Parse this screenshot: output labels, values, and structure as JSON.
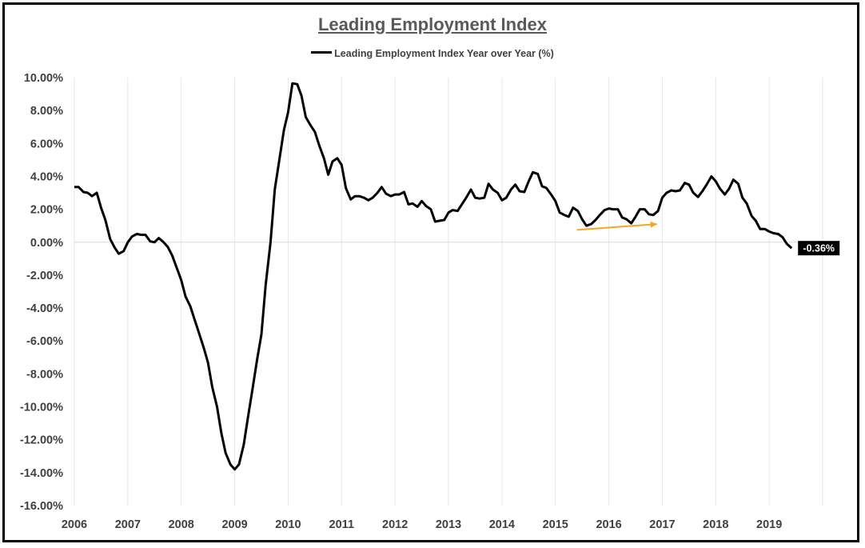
{
  "chart_data": {
    "type": "line",
    "title": "Leading Employment Index",
    "legend": "Leading Employment Index Year over Year (%)",
    "legend_position": "top-center",
    "xlabel": "",
    "ylabel": "",
    "xlim": [
      2006.0,
      2020.0
    ],
    "ylim": [
      -16,
      10
    ],
    "y_ticks": [
      10,
      8,
      6,
      4,
      2,
      0,
      -2,
      -4,
      -6,
      -8,
      -10,
      -12,
      -14,
      -16
    ],
    "y_tick_labels": [
      "10.00%",
      "8.00%",
      "6.00%",
      "4.00%",
      "2.00%",
      "0.00%",
      "-2.00%",
      "-4.00%",
      "-6.00%",
      "-8.00%",
      "-10.00%",
      "-12.00%",
      "-14.00%",
      "-16.00%"
    ],
    "x_tick_labels": [
      "2006",
      "2007",
      "2008",
      "2009",
      "2010",
      "2011",
      "2012",
      "2013",
      "2014",
      "2015",
      "2016",
      "2017",
      "2018",
      "2019"
    ],
    "grid": "vertical",
    "line_color": "#000000",
    "annotation_color": "#f5a623",
    "last_value_label": "-0.36%",
    "annotation_arrow": {
      "from": [
        2015.4,
        0.75
      ],
      "to": [
        2016.9,
        1.1
      ]
    },
    "series": [
      {
        "name": "Leading Employment Index Year over Year (%)",
        "points": [
          [
            2006.0,
            3.35
          ],
          [
            2006.08,
            3.35
          ],
          [
            2006.17,
            3.05
          ],
          [
            2006.25,
            3.0
          ],
          [
            2006.33,
            2.8
          ],
          [
            2006.42,
            3.0
          ],
          [
            2006.5,
            2.1
          ],
          [
            2006.58,
            1.35
          ],
          [
            2006.67,
            0.2
          ],
          [
            2006.75,
            -0.3
          ],
          [
            2006.83,
            -0.7
          ],
          [
            2006.92,
            -0.55
          ],
          [
            2007.0,
            0.0
          ],
          [
            2007.08,
            0.35
          ],
          [
            2007.17,
            0.5
          ],
          [
            2007.25,
            0.45
          ],
          [
            2007.33,
            0.45
          ],
          [
            2007.42,
            0.05
          ],
          [
            2007.5,
            0.0
          ],
          [
            2007.58,
            0.25
          ],
          [
            2007.67,
            0.0
          ],
          [
            2007.75,
            -0.3
          ],
          [
            2007.83,
            -0.8
          ],
          [
            2007.92,
            -1.6
          ],
          [
            2008.0,
            -2.3
          ],
          [
            2008.08,
            -3.3
          ],
          [
            2008.17,
            -3.9
          ],
          [
            2008.25,
            -4.7
          ],
          [
            2008.33,
            -5.5
          ],
          [
            2008.42,
            -6.4
          ],
          [
            2008.5,
            -7.3
          ],
          [
            2008.58,
            -8.8
          ],
          [
            2008.67,
            -10.0
          ],
          [
            2008.75,
            -11.6
          ],
          [
            2008.83,
            -12.8
          ],
          [
            2008.92,
            -13.5
          ],
          [
            2009.0,
            -13.8
          ],
          [
            2009.08,
            -13.5
          ],
          [
            2009.17,
            -12.3
          ],
          [
            2009.25,
            -10.6
          ],
          [
            2009.33,
            -9.0
          ],
          [
            2009.42,
            -7.1
          ],
          [
            2009.5,
            -5.6
          ],
          [
            2009.58,
            -2.6
          ],
          [
            2009.67,
            0.0
          ],
          [
            2009.75,
            3.2
          ],
          [
            2009.83,
            4.9
          ],
          [
            2009.92,
            6.8
          ],
          [
            2010.0,
            7.9
          ],
          [
            2010.08,
            9.65
          ],
          [
            2010.17,
            9.6
          ],
          [
            2010.25,
            8.9
          ],
          [
            2010.33,
            7.6
          ],
          [
            2010.42,
            7.1
          ],
          [
            2010.5,
            6.7
          ],
          [
            2010.58,
            5.9
          ],
          [
            2010.67,
            5.1
          ],
          [
            2010.75,
            4.1
          ],
          [
            2010.83,
            4.9
          ],
          [
            2010.92,
            5.1
          ],
          [
            2011.0,
            4.7
          ],
          [
            2011.08,
            3.3
          ],
          [
            2011.17,
            2.6
          ],
          [
            2011.25,
            2.8
          ],
          [
            2011.33,
            2.8
          ],
          [
            2011.42,
            2.7
          ],
          [
            2011.5,
            2.55
          ],
          [
            2011.58,
            2.7
          ],
          [
            2011.67,
            3.0
          ],
          [
            2011.75,
            3.35
          ],
          [
            2011.83,
            2.95
          ],
          [
            2011.92,
            2.8
          ],
          [
            2012.0,
            2.9
          ],
          [
            2012.08,
            2.9
          ],
          [
            2012.17,
            3.05
          ],
          [
            2012.25,
            2.3
          ],
          [
            2012.33,
            2.35
          ],
          [
            2012.42,
            2.15
          ],
          [
            2012.5,
            2.5
          ],
          [
            2012.58,
            2.2
          ],
          [
            2012.67,
            2.0
          ],
          [
            2012.75,
            1.25
          ],
          [
            2012.83,
            1.3
          ],
          [
            2012.92,
            1.35
          ],
          [
            2013.0,
            1.8
          ],
          [
            2013.08,
            1.95
          ],
          [
            2013.17,
            1.9
          ],
          [
            2013.25,
            2.3
          ],
          [
            2013.33,
            2.7
          ],
          [
            2013.42,
            3.2
          ],
          [
            2013.5,
            2.7
          ],
          [
            2013.58,
            2.65
          ],
          [
            2013.67,
            2.7
          ],
          [
            2013.75,
            3.55
          ],
          [
            2013.83,
            3.2
          ],
          [
            2013.92,
            3.0
          ],
          [
            2014.0,
            2.55
          ],
          [
            2014.08,
            2.7
          ],
          [
            2014.17,
            3.2
          ],
          [
            2014.25,
            3.5
          ],
          [
            2014.33,
            3.1
          ],
          [
            2014.42,
            3.05
          ],
          [
            2014.5,
            3.7
          ],
          [
            2014.58,
            4.25
          ],
          [
            2014.67,
            4.15
          ],
          [
            2014.75,
            3.4
          ],
          [
            2014.83,
            3.3
          ],
          [
            2014.92,
            2.9
          ],
          [
            2015.0,
            2.5
          ],
          [
            2015.08,
            1.8
          ],
          [
            2015.17,
            1.65
          ],
          [
            2015.25,
            1.55
          ],
          [
            2015.33,
            2.1
          ],
          [
            2015.42,
            1.9
          ],
          [
            2015.5,
            1.4
          ],
          [
            2015.58,
            1.0
          ],
          [
            2015.67,
            1.1
          ],
          [
            2015.75,
            1.35
          ],
          [
            2015.83,
            1.65
          ],
          [
            2015.92,
            1.95
          ],
          [
            2016.0,
            2.05
          ],
          [
            2016.08,
            2.0
          ],
          [
            2016.17,
            2.0
          ],
          [
            2016.25,
            1.5
          ],
          [
            2016.33,
            1.4
          ],
          [
            2016.42,
            1.15
          ],
          [
            2016.5,
            1.55
          ],
          [
            2016.58,
            2.0
          ],
          [
            2016.67,
            2.0
          ],
          [
            2016.75,
            1.7
          ],
          [
            2016.83,
            1.65
          ],
          [
            2016.92,
            1.9
          ],
          [
            2017.0,
            2.7
          ],
          [
            2017.08,
            3.0
          ],
          [
            2017.17,
            3.15
          ],
          [
            2017.25,
            3.1
          ],
          [
            2017.33,
            3.15
          ],
          [
            2017.42,
            3.6
          ],
          [
            2017.5,
            3.5
          ],
          [
            2017.58,
            3.0
          ],
          [
            2017.67,
            2.75
          ],
          [
            2017.75,
            3.1
          ],
          [
            2017.83,
            3.5
          ],
          [
            2017.92,
            4.0
          ],
          [
            2018.0,
            3.7
          ],
          [
            2018.08,
            3.25
          ],
          [
            2018.17,
            2.9
          ],
          [
            2018.25,
            3.25
          ],
          [
            2018.33,
            3.8
          ],
          [
            2018.42,
            3.55
          ],
          [
            2018.5,
            2.7
          ],
          [
            2018.58,
            2.35
          ],
          [
            2018.67,
            1.6
          ],
          [
            2018.75,
            1.3
          ],
          [
            2018.83,
            0.8
          ],
          [
            2018.92,
            0.8
          ],
          [
            2019.0,
            0.65
          ],
          [
            2019.08,
            0.55
          ],
          [
            2019.17,
            0.5
          ],
          [
            2019.25,
            0.3
          ],
          [
            2019.33,
            -0.1
          ],
          [
            2019.42,
            -0.36
          ]
        ]
      }
    ]
  }
}
